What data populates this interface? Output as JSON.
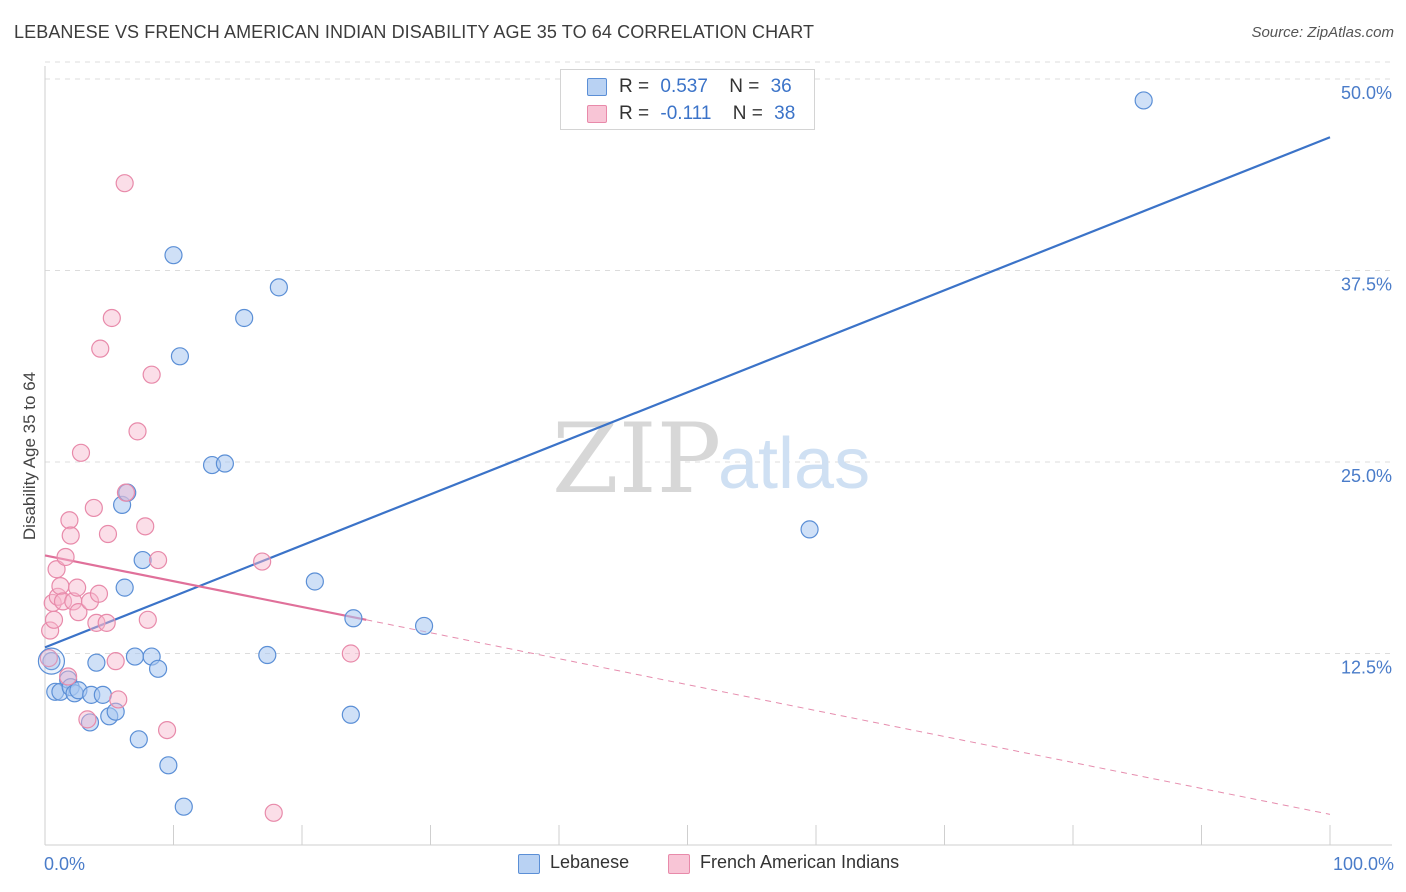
{
  "title": "LEBANESE VS FRENCH AMERICAN INDIAN DISABILITY AGE 35 TO 64 CORRELATION CHART",
  "source": "Source: ZipAtlas.com",
  "watermark": {
    "zip": "ZIP",
    "atlas": "atlas"
  },
  "legend_top": {
    "rows": [
      {
        "r_label": "R =",
        "r_value": "0.537",
        "n_label": "N =",
        "n_value": "36"
      },
      {
        "r_label": "R =",
        "r_value": "-0.111",
        "n_label": "N =",
        "n_value": "38"
      }
    ]
  },
  "legend_bottom": {
    "items": [
      "Lebanese",
      "French American Indians"
    ]
  },
  "colors": {
    "blue": "#3b73c8",
    "pink": "#e0709a",
    "tick_text": "#4a7cc9"
  },
  "chart_data": {
    "type": "scatter",
    "title": "LEBANESE VS FRENCH AMERICAN INDIAN DISABILITY AGE 35 TO 64 CORRELATION CHART",
    "xlabel": "",
    "ylabel": "Disability Age 35 to 64",
    "xlim": [
      0,
      100
    ],
    "ylim": [
      0,
      52
    ],
    "x_tick_labels": [
      "0.0%",
      "100.0%"
    ],
    "y_ticks": [
      12.5,
      25.0,
      37.5,
      50.0
    ],
    "y_tick_labels": [
      "12.5%",
      "25.0%",
      "37.5%",
      "50.0%"
    ],
    "grid": true,
    "series": [
      {
        "name": "Lebanese",
        "color": "#3b73c8",
        "R": 0.537,
        "N": 36,
        "points": [
          [
            0.5,
            12.0
          ],
          [
            0.8,
            10.0
          ],
          [
            1.2,
            10.0
          ],
          [
            1.8,
            10.8
          ],
          [
            2.0,
            10.3
          ],
          [
            2.3,
            9.9
          ],
          [
            2.6,
            10.1
          ],
          [
            3.5,
            8.0
          ],
          [
            3.6,
            9.8
          ],
          [
            4.0,
            11.9
          ],
          [
            4.5,
            9.8
          ],
          [
            5.0,
            8.4
          ],
          [
            5.5,
            8.7
          ],
          [
            6.0,
            22.2
          ],
          [
            6.2,
            16.8
          ],
          [
            6.4,
            23.0
          ],
          [
            7.0,
            12.3
          ],
          [
            7.3,
            6.9
          ],
          [
            7.6,
            18.6
          ],
          [
            8.3,
            12.3
          ],
          [
            8.8,
            11.5
          ],
          [
            9.6,
            5.2
          ],
          [
            10.0,
            38.5
          ],
          [
            10.5,
            31.9
          ],
          [
            10.8,
            2.5
          ],
          [
            13.0,
            24.8
          ],
          [
            14.0,
            24.9
          ],
          [
            15.5,
            34.4
          ],
          [
            17.3,
            12.4
          ],
          [
            18.2,
            36.4
          ],
          [
            21.0,
            17.2
          ],
          [
            23.8,
            8.5
          ],
          [
            24.0,
            14.8
          ],
          [
            29.5,
            14.3
          ],
          [
            59.5,
            20.6
          ],
          [
            85.5,
            48.6
          ]
        ],
        "trend": {
          "x": [
            0,
            100
          ],
          "y": [
            12.9,
            46.2
          ]
        }
      },
      {
        "name": "French American Indians",
        "color": "#e0709a",
        "R": -0.111,
        "N": 38,
        "points": [
          [
            0.3,
            12.2
          ],
          [
            0.4,
            14.0
          ],
          [
            0.6,
            15.8
          ],
          [
            0.7,
            14.7
          ],
          [
            0.9,
            18.0
          ],
          [
            1.0,
            16.2
          ],
          [
            1.2,
            16.9
          ],
          [
            1.4,
            15.9
          ],
          [
            1.6,
            18.8
          ],
          [
            1.8,
            11.0
          ],
          [
            1.9,
            21.2
          ],
          [
            2.0,
            20.2
          ],
          [
            2.2,
            15.9
          ],
          [
            2.5,
            16.8
          ],
          [
            2.6,
            15.2
          ],
          [
            2.8,
            25.6
          ],
          [
            3.3,
            8.2
          ],
          [
            3.5,
            15.9
          ],
          [
            3.8,
            22.0
          ],
          [
            4.0,
            14.5
          ],
          [
            4.2,
            16.4
          ],
          [
            4.3,
            32.4
          ],
          [
            4.8,
            14.5
          ],
          [
            4.9,
            20.3
          ],
          [
            5.2,
            34.4
          ],
          [
            5.5,
            12.0
          ],
          [
            5.7,
            9.5
          ],
          [
            6.2,
            43.2
          ],
          [
            6.3,
            23.0
          ],
          [
            7.2,
            27.0
          ],
          [
            7.8,
            20.8
          ],
          [
            8.0,
            14.7
          ],
          [
            8.3,
            30.7
          ],
          [
            8.8,
            18.6
          ],
          [
            9.5,
            7.5
          ],
          [
            16.9,
            18.5
          ],
          [
            17.8,
            2.1
          ],
          [
            23.8,
            12.5
          ]
        ],
        "trend": {
          "x": [
            0,
            25
          ],
          "y": [
            18.9,
            14.7
          ]
        },
        "trend_extension": {
          "x": [
            25,
            100
          ],
          "y": [
            14.7,
            2.0
          ]
        }
      }
    ]
  }
}
